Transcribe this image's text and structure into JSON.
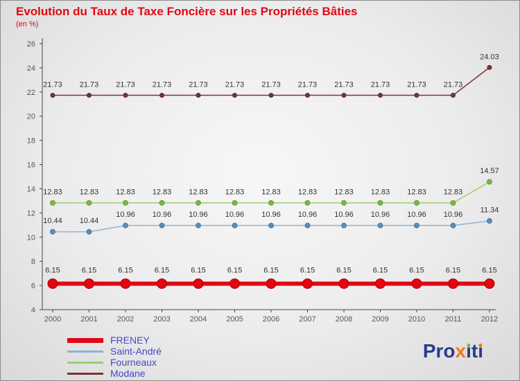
{
  "title": "Evolution du Taux de Taxe Foncière sur les Propriétés Bâties",
  "subtitle": "(en %)",
  "colors": {
    "title_text": "#e30613",
    "legend_text": "#4747c8",
    "axis_text": "#555555",
    "data_label_text": "#333333",
    "axis_line": "#444444"
  },
  "chart_data": {
    "type": "line",
    "title": "Evolution du Taux de Taxe Foncière sur les Propriétés Bâties",
    "ylabel": "(en %)",
    "x": [
      2000,
      2001,
      2002,
      2003,
      2004,
      2005,
      2006,
      2007,
      2008,
      2009,
      2010,
      2011,
      2012
    ],
    "ylim": [
      4,
      26
    ],
    "yticks": [
      4,
      6,
      8,
      10,
      12,
      14,
      16,
      18,
      20,
      22,
      24,
      26
    ],
    "grid": false,
    "legend_position": "bottom-left",
    "series": [
      {
        "name": "FRENEY",
        "color": "#e30613",
        "marker_color": "#e30613",
        "marker_stroke": "#b00000",
        "line_width": 6,
        "marker_radius": 7,
        "values": [
          6.15,
          6.15,
          6.15,
          6.15,
          6.15,
          6.15,
          6.15,
          6.15,
          6.15,
          6.15,
          6.15,
          6.15,
          6.15
        ]
      },
      {
        "name": "Saint-André",
        "color": "#8fb2d4",
        "marker_color": "#5b8db8",
        "marker_stroke": "#4a7aa5",
        "line_width": 1.5,
        "marker_radius": 3.5,
        "values": [
          10.44,
          10.44,
          10.96,
          10.96,
          10.96,
          10.96,
          10.96,
          10.96,
          10.96,
          10.96,
          10.96,
          10.96,
          11.34
        ]
      },
      {
        "name": "Fourneaux",
        "color": "#9ccc73",
        "marker_color": "#7ab648",
        "marker_stroke": "#69a03c",
        "line_width": 1.5,
        "marker_radius": 3.5,
        "values": [
          12.83,
          12.83,
          12.83,
          12.83,
          12.83,
          12.83,
          12.83,
          12.83,
          12.83,
          12.83,
          12.83,
          12.83,
          14.57
        ]
      },
      {
        "name": "Modane",
        "color": "#7b3333",
        "marker_color": "#7b3333",
        "marker_stroke": "#5e2525",
        "line_width": 1.5,
        "marker_radius": 3,
        "values": [
          21.73,
          21.73,
          21.73,
          21.73,
          21.73,
          21.73,
          21.73,
          21.73,
          21.73,
          21.73,
          21.73,
          21.73,
          24.03
        ]
      }
    ]
  },
  "legend": {
    "items": [
      "FRENEY",
      "Saint-André",
      "Fourneaux",
      "Modane"
    ]
  },
  "logo": {
    "name": "Proxiti",
    "parts": [
      {
        "text": "Pro",
        "color": "#2a3b8f"
      },
      {
        "text": "x",
        "color": "#f07818"
      },
      {
        "text": "ı",
        "color": "#2a3b8f",
        "dot": "#72bf44"
      },
      {
        "text": "t",
        "color": "#2a3b8f"
      },
      {
        "text": "ı",
        "color": "#2a3b8f",
        "dot": "#f07818"
      }
    ]
  }
}
